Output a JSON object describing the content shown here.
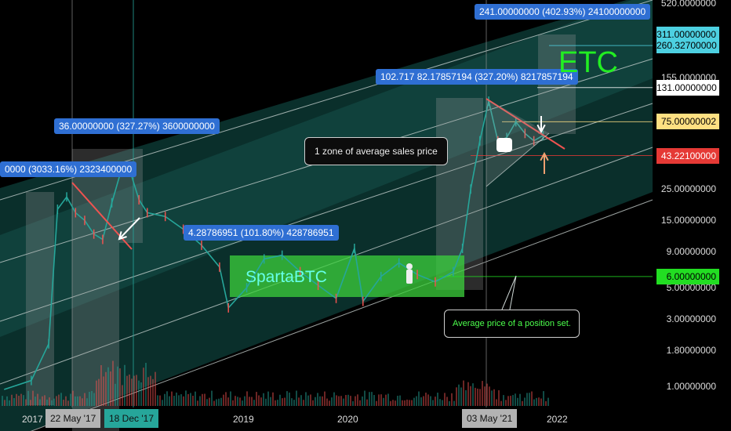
{
  "chart_data": {
    "type": "line",
    "scale": "log",
    "xlabel": "",
    "ylabel": "",
    "x_ticks": [
      "2017",
      "2019",
      "2020",
      "2022"
    ],
    "x_tags": [
      {
        "label": "22 May '17",
        "color": "#b3b3b3"
      },
      {
        "label": "18 Dec '17",
        "color": "#26a69a"
      },
      {
        "label": "03 May '21",
        "color": "#b3b3b3"
      }
    ],
    "y_ticks": [
      "520.0000000",
      "155.0000000",
      "25.00000000",
      "15.00000000",
      "9.00000000",
      "5.00000000",
      "3.00000000",
      "1.80000000",
      "1.00000000"
    ],
    "price_markers": [
      {
        "label": "311.00000000",
        "bg": "#4dd0e1",
        "fg": "#000000"
      },
      {
        "label": "260.32700000",
        "bg": "#4dd0e1",
        "fg": "#000000"
      },
      {
        "label": "131.00000000",
        "bg": "#ffffff",
        "fg": "#000000"
      },
      {
        "label": "75.00000002",
        "bg": "#ffe082",
        "fg": "#000000"
      },
      {
        "label": "43.22100000",
        "bg": "#e53935",
        "fg": "#ffffff"
      },
      {
        "label": "6.00000000",
        "bg": "#22dd22",
        "fg": "#000000"
      }
    ],
    "price_path": [
      {
        "d": "2016-11",
        "v": 0.95
      },
      {
        "d": "2017-02",
        "v": 1.1
      },
      {
        "d": "2017-04",
        "v": 2.0
      },
      {
        "d": "2017-05",
        "v": 18
      },
      {
        "d": "2017-06",
        "v": 22
      },
      {
        "d": "2017-07",
        "v": 17
      },
      {
        "d": "2017-08",
        "v": 15
      },
      {
        "d": "2017-09",
        "v": 12
      },
      {
        "d": "2017-10",
        "v": 11
      },
      {
        "d": "2017-11",
        "v": 20
      },
      {
        "d": "2017-12",
        "v": 33
      },
      {
        "d": "2018-01",
        "v": 34
      },
      {
        "d": "2018-02",
        "v": 21
      },
      {
        "d": "2018-03",
        "v": 17
      },
      {
        "d": "2018-05",
        "v": 16
      },
      {
        "d": "2018-07",
        "v": 13
      },
      {
        "d": "2018-09",
        "v": 10
      },
      {
        "d": "2018-11",
        "v": 7
      },
      {
        "d": "2018-12",
        "v": 3.6
      },
      {
        "d": "2019-02",
        "v": 5.0
      },
      {
        "d": "2019-04",
        "v": 8.0
      },
      {
        "d": "2019-06",
        "v": 8.5
      },
      {
        "d": "2019-08",
        "v": 6.5
      },
      {
        "d": "2019-10",
        "v": 5.2
      },
      {
        "d": "2019-12",
        "v": 4.2
      },
      {
        "d": "2020-02",
        "v": 9.5
      },
      {
        "d": "2020-03",
        "v": 4.0
      },
      {
        "d": "2020-05",
        "v": 6.0
      },
      {
        "d": "2020-07",
        "v": 7.5
      },
      {
        "d": "2020-09",
        "v": 6.2
      },
      {
        "d": "2020-11",
        "v": 5.5
      },
      {
        "d": "2021-01",
        "v": 6.5
      },
      {
        "d": "2021-02",
        "v": 9.5
      },
      {
        "d": "2021-03",
        "v": 25
      },
      {
        "d": "2021-04",
        "v": 55
      },
      {
        "d": "2021-05",
        "v": 105
      },
      {
        "d": "2021-06",
        "v": 55
      },
      {
        "d": "2021-07",
        "v": 58
      },
      {
        "d": "2021-08",
        "v": 75
      },
      {
        "d": "2021-09",
        "v": 62
      },
      {
        "d": "2021-10",
        "v": 55
      },
      {
        "d": "2021-11",
        "v": 60
      }
    ],
    "annotations": {
      "label_1": "0000 (3033.16%) 2323400000",
      "label_2": "36.00000000 (327.27%) 3600000000",
      "label_3": "4.28786951 (101.80%) 428786951",
      "label_4": "102.717  82.17857194 (327.20%) 8217857194",
      "label_5": "241.00000000 (402.93%) 24100000000",
      "zone_note": "1 zone of average sales price",
      "position_note": "Average price of a position set.",
      "watermark": "SpartaBTC",
      "ticker": "ETC"
    }
  }
}
